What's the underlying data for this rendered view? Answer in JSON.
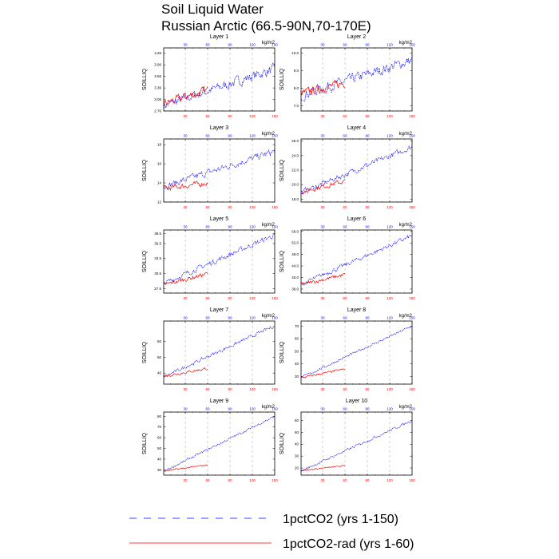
{
  "title_line1": "Soil Liquid Water",
  "title_line2": "Russian Arctic (66.5-90N,70-170E)",
  "colors": {
    "series_150": "#0000ff",
    "series_60": "#ff0000",
    "grid": "#a0a0a0"
  },
  "legend": [
    {
      "label": "1pctCO2 (yrs 1-150)",
      "color": "#0000ff",
      "style": "dashed"
    },
    {
      "label": "1pctCO2-rad (yrs 1-60)",
      "color": "#ff0000",
      "style": "solid"
    }
  ],
  "chart_data": [
    {
      "type": "line",
      "title": "Layer 1",
      "unit": "kg/m2",
      "ylabel": "SOILLIQ",
      "x_top_ticks": [
        "30",
        "60",
        "90",
        "120",
        "150"
      ],
      "x_bottom_ticks": [
        "30",
        "60",
        "90",
        "120",
        "150"
      ],
      "xlim": [
        1,
        150
      ],
      "ylim": [
        2.76,
        4.4
      ],
      "y_ticks": [
        "2.76",
        "3.06",
        "3.36",
        "3.66",
        "3.96",
        "4.26"
      ],
      "series": [
        {
          "name": "1pctCO2 (yrs 1-150)",
          "color": "#0000ff",
          "start": 2.9,
          "end": 3.85,
          "noise": 0.2,
          "length": 150
        },
        {
          "name": "1pctCO2-rad (yrs 1-60)",
          "color": "#ff0000",
          "start": 2.95,
          "end": 3.3,
          "noise": 0.17,
          "length": 60
        }
      ]
    },
    {
      "type": "line",
      "title": "Layer 2",
      "unit": "kg/m2",
      "ylabel": "SOILLIQ",
      "x_top_ticks": [
        "30",
        "60",
        "90",
        "120",
        "150"
      ],
      "x_bottom_ticks": [
        "30",
        "60",
        "90",
        "120",
        "150"
      ],
      "xlim": [
        1,
        150
      ],
      "ylim": [
        6.7,
        10.3
      ],
      "y_ticks": [
        "7.0",
        "8.0",
        "9.0",
        "10.0"
      ],
      "series": [
        {
          "name": "1pctCO2 (yrs 1-150)",
          "color": "#0000ff",
          "start": 7.6,
          "end": 9.6,
          "noise": 0.45,
          "length": 150
        },
        {
          "name": "1pctCO2-rad (yrs 1-60)",
          "color": "#ff0000",
          "start": 7.7,
          "end": 8.3,
          "noise": 0.38,
          "length": 60
        }
      ]
    },
    {
      "type": "line",
      "title": "Layer 3",
      "unit": "kg/m2",
      "ylabel": "SOILLIQ",
      "x_top_ticks": [
        "30",
        "60",
        "90",
        "120",
        "150"
      ],
      "x_bottom_ticks": [
        "30",
        "60",
        "90",
        "120",
        "150"
      ],
      "xlim": [
        1,
        150
      ],
      "ylim": [
        12,
        18.6
      ],
      "y_ticks": [
        "12",
        "14",
        "16",
        "18"
      ],
      "series": [
        {
          "name": "1pctCO2 (yrs 1-150)",
          "color": "#0000ff",
          "start": 13.6,
          "end": 17.3,
          "noise": 0.55,
          "length": 150
        },
        {
          "name": "1pctCO2-rad (yrs 1-60)",
          "color": "#ff0000",
          "start": 13.4,
          "end": 14.0,
          "noise": 0.45,
          "length": 60
        }
      ]
    },
    {
      "type": "line",
      "title": "Layer 4",
      "unit": "kg/m2",
      "ylabel": "SOILLIQ",
      "x_top_ticks": [
        "30",
        "60",
        "90",
        "120",
        "150"
      ],
      "x_bottom_ticks": [
        "30",
        "60",
        "90",
        "120",
        "150"
      ],
      "xlim": [
        1,
        150
      ],
      "ylim": [
        17.6,
        26.3
      ],
      "y_ticks": [
        "18.0",
        "20.0",
        "22.0",
        "24.0",
        "26.0"
      ],
      "series": [
        {
          "name": "1pctCO2 (yrs 1-150)",
          "color": "#0000ff",
          "start": 18.9,
          "end": 25.2,
          "noise": 0.6,
          "length": 150
        },
        {
          "name": "1pctCO2-rad (yrs 1-60)",
          "color": "#ff0000",
          "start": 19.0,
          "end": 20.5,
          "noise": 0.5,
          "length": 60
        }
      ]
    },
    {
      "type": "line",
      "title": "Layer 5",
      "unit": "kg/m2",
      "ylabel": "SOILLIQ",
      "x_top_ticks": [
        "30",
        "60",
        "90",
        "120",
        "150"
      ],
      "x_bottom_ticks": [
        "30",
        "60",
        "90",
        "120",
        "150"
      ],
      "xlim": [
        1,
        150
      ],
      "ylim": [
        26.6,
        39.2
      ],
      "y_ticks": [
        "27.5",
        "30.5",
        "33.5",
        "36.5",
        "38.5"
      ],
      "series": [
        {
          "name": "1pctCO2 (yrs 1-150)",
          "color": "#0000ff",
          "start": 28.5,
          "end": 38.2,
          "noise": 0.8,
          "length": 150
        },
        {
          "name": "1pctCO2-rad (yrs 1-60)",
          "color": "#ff0000",
          "start": 28.2,
          "end": 30.5,
          "noise": 0.65,
          "length": 60
        }
      ]
    },
    {
      "type": "line",
      "title": "Layer 6",
      "unit": "kg/m2",
      "ylabel": "SOILLIQ",
      "x_top_ticks": [
        "30",
        "60",
        "90",
        "120",
        "150"
      ],
      "x_bottom_ticks": [
        "30",
        "60",
        "90",
        "120",
        "150"
      ],
      "xlim": [
        1,
        150
      ],
      "ylim": [
        34.6,
        56.5
      ],
      "y_ticks": [
        "36.0",
        "40.0",
        "44.0",
        "48.0",
        "52.0",
        "56.0"
      ],
      "series": [
        {
          "name": "1pctCO2 (yrs 1-150)",
          "color": "#0000ff",
          "start": 37.6,
          "end": 54.5,
          "noise": 1.2,
          "length": 150
        },
        {
          "name": "1pctCO2-rad (yrs 1-60)",
          "color": "#ff0000",
          "start": 37.5,
          "end": 41.0,
          "noise": 1.0,
          "length": 60
        }
      ]
    },
    {
      "type": "line",
      "title": "Layer 7",
      "unit": "kg/m2",
      "ylabel": "SOILLIQ",
      "x_top_ticks": [
        "30",
        "60",
        "90",
        "120",
        "150"
      ],
      "x_bottom_ticks": [
        "30",
        "60",
        "90",
        "120",
        "150"
      ],
      "xlim": [
        1,
        150
      ],
      "ylim": [
        33,
        73
      ],
      "y_ticks": [
        "40",
        "50",
        "60"
      ],
      "series": [
        {
          "name": "1pctCO2 (yrs 1-150)",
          "color": "#0000ff",
          "start": 37.5,
          "end": 70.0,
          "noise": 1.6,
          "length": 150
        },
        {
          "name": "1pctCO2-rad (yrs 1-60)",
          "color": "#ff0000",
          "start": 38.0,
          "end": 43.0,
          "noise": 1.3,
          "length": 60
        }
      ]
    },
    {
      "type": "line",
      "title": "Layer 8",
      "unit": "kg/m2",
      "ylabel": "SOILLIQ",
      "x_top_ticks": [
        "30",
        "60",
        "90",
        "120",
        "150"
      ],
      "x_bottom_ticks": [
        "30",
        "60",
        "90",
        "120",
        "150"
      ],
      "xlim": [
        1,
        150
      ],
      "ylim": [
        24,
        74
      ],
      "y_ticks": [
        "30",
        "40",
        "50",
        "60",
        "70"
      ],
      "series": [
        {
          "name": "1pctCO2 (yrs 1-150)",
          "color": "#0000ff",
          "start": 29.0,
          "end": 70.0,
          "noise": 1.5,
          "length": 150
        },
        {
          "name": "1pctCO2-rad (yrs 1-60)",
          "color": "#ff0000",
          "start": 29.0,
          "end": 36.0,
          "noise": 1.2,
          "length": 60
        }
      ]
    },
    {
      "type": "line",
      "title": "Layer 9",
      "unit": "kg/m2",
      "ylabel": "SOILLIQ",
      "x_top_ticks": [
        "30",
        "60",
        "90",
        "120",
        "150"
      ],
      "x_bottom_ticks": [
        "30",
        "60",
        "90",
        "120",
        "150"
      ],
      "xlim": [
        1,
        150
      ],
      "ylim": [
        25,
        84
      ],
      "y_ticks": [
        "30",
        "40",
        "50",
        "60",
        "70",
        "80"
      ],
      "series": [
        {
          "name": "1pctCO2 (yrs 1-150)",
          "color": "#0000ff",
          "start": 28.5,
          "end": 80.0,
          "noise": 1.6,
          "length": 150
        },
        {
          "name": "1pctCO2-rad (yrs 1-60)",
          "color": "#ff0000",
          "start": 28.8,
          "end": 34.5,
          "noise": 1.0,
          "length": 60
        }
      ]
    },
    {
      "type": "line",
      "title": "Layer 10",
      "unit": "kg/m2",
      "ylabel": "SOILLIQ",
      "x_top_ticks": [
        "30",
        "60",
        "90",
        "120",
        "150"
      ],
      "x_bottom_ticks": [
        "30",
        "60",
        "90",
        "120",
        "150"
      ],
      "xlim": [
        1,
        150
      ],
      "ylim": [
        14,
        67
      ],
      "y_ticks": [
        "20",
        "30",
        "40",
        "50",
        "60"
      ],
      "series": [
        {
          "name": "1pctCO2 (yrs 1-150)",
          "color": "#0000ff",
          "start": 17.5,
          "end": 60.0,
          "noise": 1.6,
          "length": 150
        },
        {
          "name": "1pctCO2-rad (yrs 1-60)",
          "color": "#ff0000",
          "start": 17.8,
          "end": 22.0,
          "noise": 0.7,
          "length": 60
        }
      ]
    }
  ]
}
